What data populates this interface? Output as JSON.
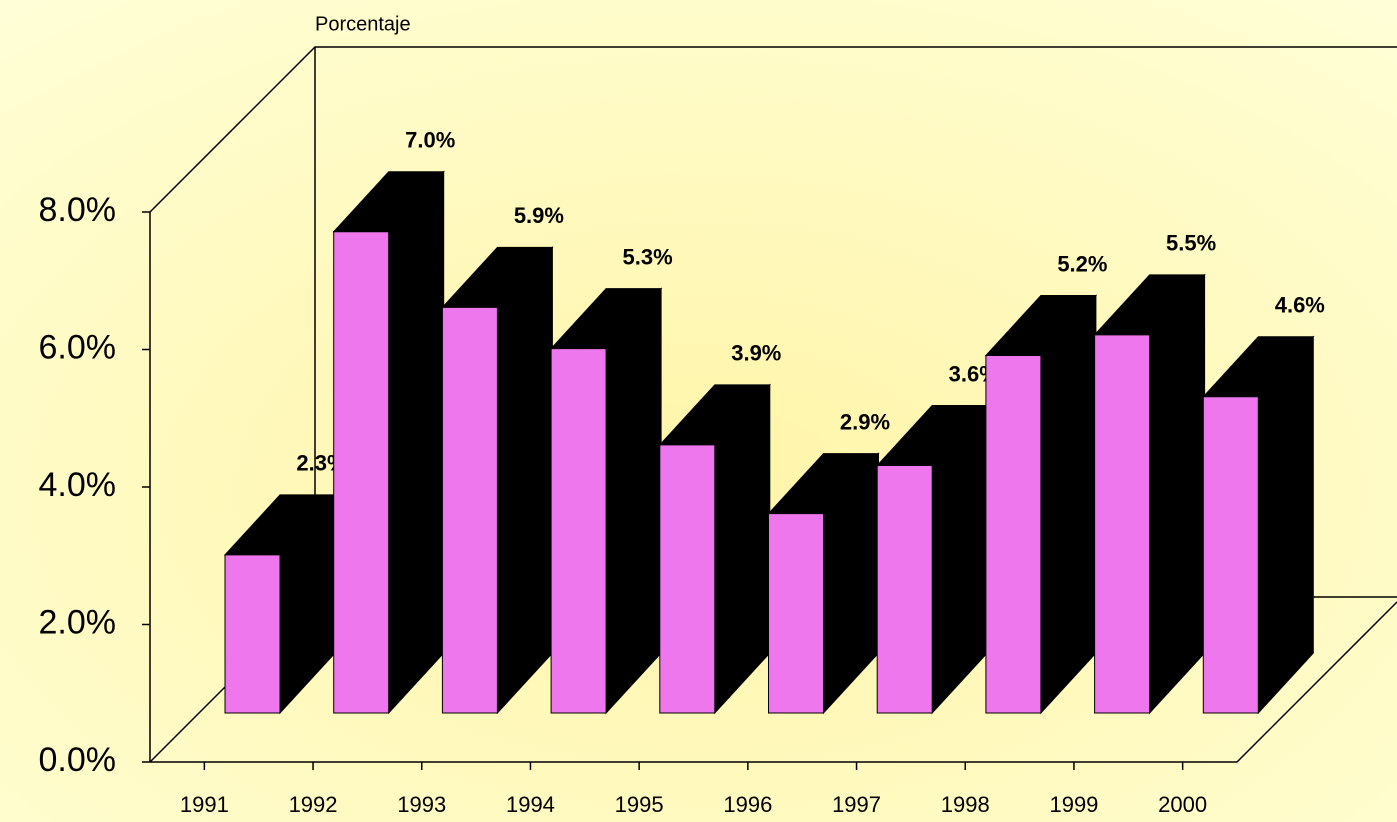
{
  "chart_data": {
    "type": "bar3d",
    "y_label": "Porcentaje",
    "categories": [
      "1991",
      "1992",
      "1993",
      "1994",
      "1995",
      "1996",
      "1997",
      "1998",
      "1999",
      "2000"
    ],
    "values": [
      2.3,
      7.0,
      5.9,
      5.3,
      3.9,
      2.9,
      3.6,
      5.2,
      5.5,
      4.6
    ],
    "value_labels": [
      "2.3%",
      "7.0%",
      "5.9%",
      "5.3%",
      "3.9%",
      "2.9%",
      "3.6%",
      "5.2%",
      "5.5%",
      "4.6%"
    ],
    "color": "#ee77ee",
    "side_color": "#000000",
    "ylim": [
      0,
      8
    ],
    "yticks": [
      {
        "value": 0,
        "label": "0.0%"
      },
      {
        "value": 2,
        "label": "2.0%"
      },
      {
        "value": 4,
        "label": "4.0%"
      },
      {
        "value": 6,
        "label": "6.0%"
      },
      {
        "value": 8,
        "label": "8.0%"
      }
    ]
  }
}
